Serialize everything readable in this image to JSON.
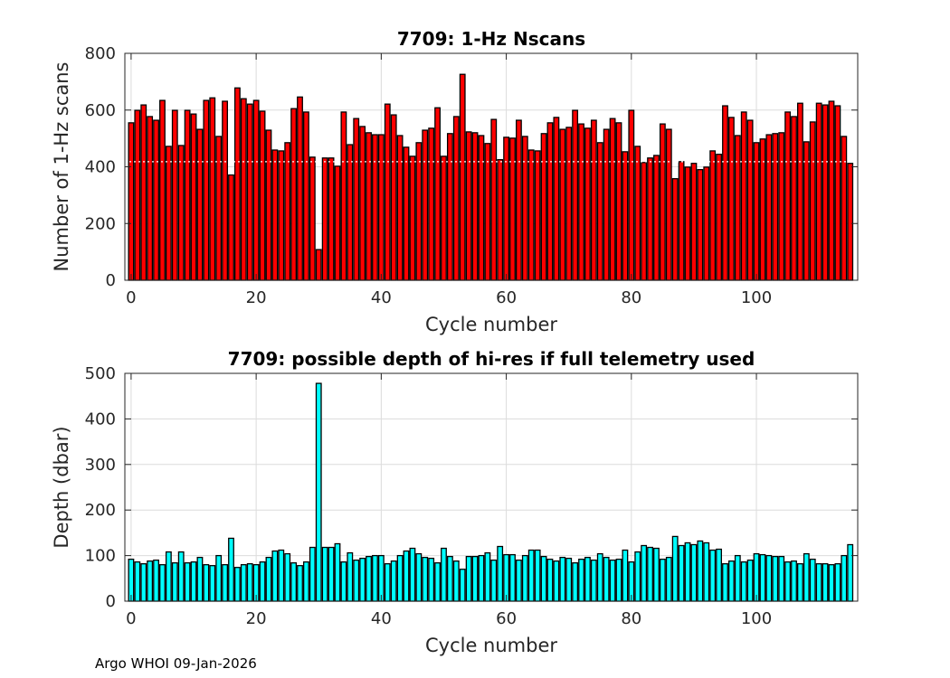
{
  "footer": "Argo WHOI 09-Jan-2026",
  "chart_data": [
    {
      "type": "bar",
      "title": "7709: 1-Hz Nscans",
      "xlabel": "Cycle number",
      "ylabel": "Number of 1-Hz scans",
      "xlim": [
        -1,
        116.2
      ],
      "ylim": [
        0,
        800
      ],
      "xticks": [
        0,
        20,
        40,
        60,
        80,
        100
      ],
      "yticks": [
        0,
        200,
        400,
        600,
        800
      ],
      "grid": true,
      "bar_color": "#ff0000",
      "reference_line": 418,
      "x_start": 0,
      "values": [
        555,
        599,
        618,
        577,
        564,
        634,
        472,
        599,
        475,
        599,
        586,
        532,
        634,
        643,
        507,
        631,
        371,
        678,
        640,
        621,
        634,
        596,
        529,
        459,
        456,
        485,
        605,
        646,
        593,
        434,
        108,
        431,
        431,
        402,
        593,
        478,
        570,
        542,
        520,
        513,
        513,
        621,
        583,
        510,
        469,
        437,
        485,
        529,
        536,
        608,
        437,
        517,
        577,
        726,
        523,
        520,
        510,
        482,
        567,
        425,
        504,
        501,
        564,
        507,
        459,
        456,
        517,
        555,
        574,
        532,
        539,
        599,
        551,
        536,
        564,
        485,
        532,
        570,
        555,
        453,
        599,
        472,
        415,
        431,
        440,
        551,
        532,
        358,
        418,
        399,
        412,
        390,
        399,
        456,
        444,
        615,
        574,
        510,
        593,
        564,
        485,
        498,
        513,
        517,
        520,
        593,
        577,
        624,
        488,
        558,
        624,
        618,
        631,
        615,
        507,
        412
      ]
    },
    {
      "type": "bar",
      "title": "7709: possible depth of hi-res if full telemetry used",
      "xlabel": "Cycle number",
      "ylabel": "Depth (dbar)",
      "xlim": [
        -1,
        116.2
      ],
      "ylim": [
        0,
        500
      ],
      "xticks": [
        0,
        20,
        40,
        60,
        80,
        100
      ],
      "yticks": [
        0,
        100,
        200,
        300,
        400,
        500
      ],
      "grid": true,
      "bar_color": "#00ffff",
      "x_start": 0,
      "values": [
        92,
        86,
        82,
        88,
        90,
        80,
        108,
        84,
        108,
        84,
        86,
        96,
        80,
        78,
        100,
        80,
        138,
        74,
        80,
        82,
        80,
        86,
        96,
        110,
        112,
        104,
        84,
        78,
        86,
        118,
        478,
        118,
        118,
        126,
        86,
        106,
        90,
        94,
        98,
        100,
        100,
        82,
        88,
        100,
        110,
        116,
        104,
        96,
        94,
        84,
        116,
        98,
        88,
        70,
        98,
        98,
        100,
        106,
        90,
        120,
        102,
        102,
        90,
        100,
        112,
        112,
        98,
        92,
        88,
        96,
        94,
        84,
        92,
        96,
        90,
        104,
        96,
        90,
        92,
        112,
        86,
        108,
        122,
        118,
        116,
        92,
        96,
        142,
        122,
        128,
        124,
        132,
        128,
        112,
        114,
        82,
        88,
        100,
        86,
        90,
        104,
        102,
        100,
        98,
        98,
        86,
        88,
        82,
        104,
        92,
        82,
        82,
        80,
        82,
        100,
        124
      ]
    }
  ]
}
